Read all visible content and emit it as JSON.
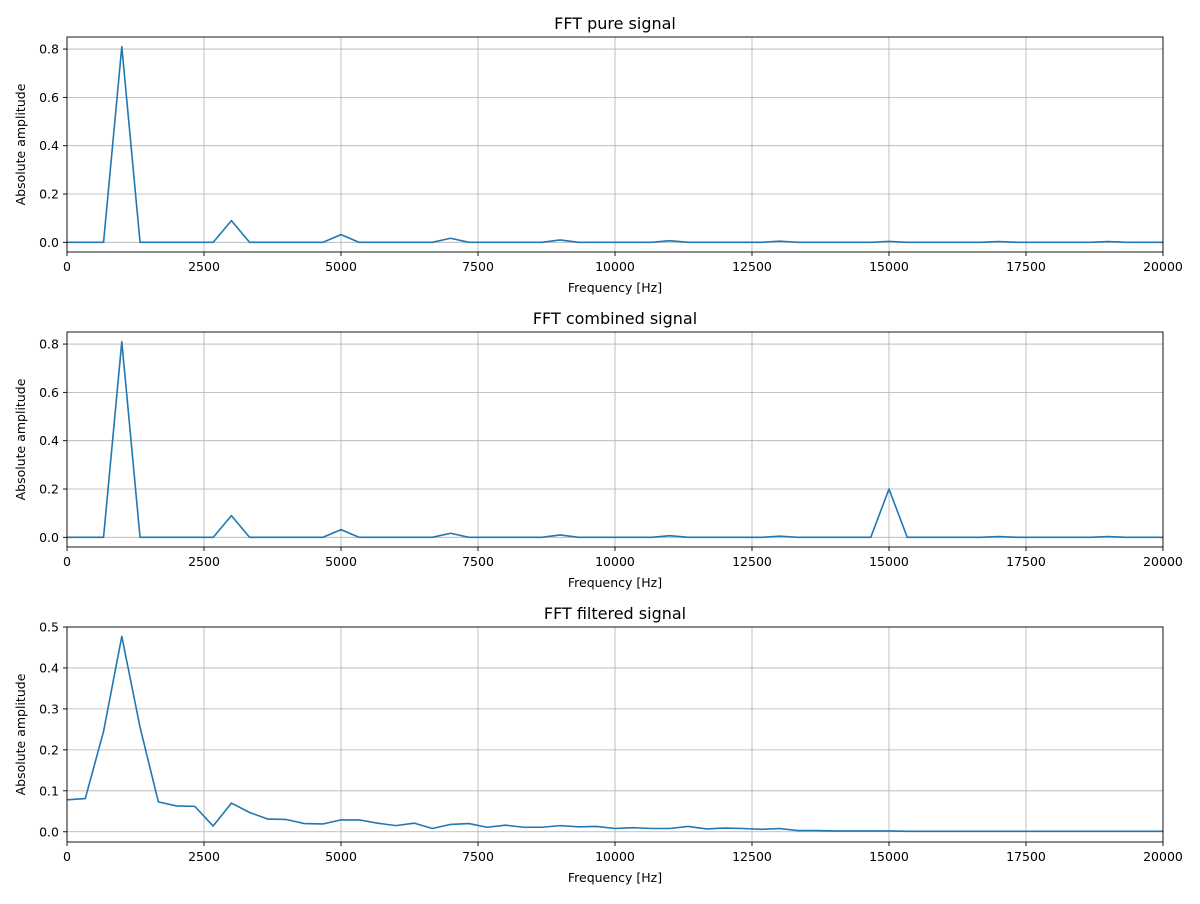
{
  "chart_data": [
    {
      "type": "line",
      "title": "FFT pure signal",
      "xlabel": "Frequency [Hz]",
      "ylabel": "Absolute amplitude",
      "xlim": [
        0,
        20000
      ],
      "ylim": [
        -0.04,
        0.85
      ],
      "grid": true,
      "color": "#1f77b4",
      "x_ticks": [
        "0",
        "2500",
        "5000",
        "7500",
        "10000",
        "12500",
        "15000",
        "17500",
        "20000"
      ],
      "y_ticks": [
        "0.0",
        "0.2",
        "0.4",
        "0.6",
        "0.8"
      ],
      "series": [
        {
          "x": [
            0,
            333,
            667,
            1000,
            1333,
            1667,
            2000,
            2333,
            2667,
            3000,
            3333,
            3667,
            4000,
            4333,
            4667,
            5000,
            5333,
            5667,
            6000,
            6333,
            6667,
            7000,
            7333,
            7667,
            8000,
            8333,
            8667,
            9000,
            9333,
            9667,
            10000,
            10333,
            10667,
            11000,
            11333,
            11667,
            12000,
            12333,
            12667,
            13000,
            13333,
            13667,
            14000,
            14333,
            14667,
            15000,
            15333,
            15667,
            16000,
            16333,
            16667,
            17000,
            17333,
            17667,
            18000,
            18333,
            18667,
            19000,
            19333,
            19667,
            20000
          ],
          "values": [
            0,
            0,
            0,
            0.81,
            0,
            0,
            0,
            0,
            0,
            0.09,
            0,
            0,
            0,
            0,
            0,
            0.032,
            0,
            0,
            0,
            0,
            0,
            0.017,
            0,
            0,
            0,
            0,
            0,
            0.01,
            0,
            0,
            0,
            0,
            0,
            0.007,
            0,
            0,
            0,
            0,
            0,
            0.005,
            0,
            0,
            0,
            0,
            0,
            0.004,
            0,
            0,
            0,
            0,
            0,
            0.003,
            0,
            0,
            0,
            0,
            0,
            0.003,
            0,
            0,
            0
          ]
        }
      ]
    },
    {
      "type": "line",
      "title": "FFT combined signal",
      "xlabel": "Frequency [Hz]",
      "ylabel": "Absolute amplitude",
      "xlim": [
        0,
        20000
      ],
      "ylim": [
        -0.04,
        0.85
      ],
      "grid": true,
      "color": "#1f77b4",
      "x_ticks": [
        "0",
        "2500",
        "5000",
        "7500",
        "10000",
        "12500",
        "15000",
        "17500",
        "20000"
      ],
      "y_ticks": [
        "0.0",
        "0.2",
        "0.4",
        "0.6",
        "0.8"
      ],
      "series": [
        {
          "x": [
            0,
            333,
            667,
            1000,
            1333,
            1667,
            2000,
            2333,
            2667,
            3000,
            3333,
            3667,
            4000,
            4333,
            4667,
            5000,
            5333,
            5667,
            6000,
            6333,
            6667,
            7000,
            7333,
            7667,
            8000,
            8333,
            8667,
            9000,
            9333,
            9667,
            10000,
            10333,
            10667,
            11000,
            11333,
            11667,
            12000,
            12333,
            12667,
            13000,
            13333,
            13667,
            14000,
            14333,
            14667,
            15000,
            15333,
            15667,
            16000,
            16333,
            16667,
            17000,
            17333,
            17667,
            18000,
            18333,
            18667,
            19000,
            19333,
            19667,
            20000
          ],
          "values": [
            0,
            0,
            0,
            0.81,
            0,
            0,
            0,
            0,
            0,
            0.09,
            0,
            0,
            0,
            0,
            0,
            0.032,
            0,
            0,
            0,
            0,
            0,
            0.017,
            0,
            0,
            0,
            0,
            0,
            0.01,
            0,
            0,
            0,
            0,
            0,
            0.007,
            0,
            0,
            0,
            0,
            0,
            0.005,
            0,
            0,
            0,
            0,
            0,
            0.2,
            0,
            0,
            0,
            0,
            0,
            0.003,
            0,
            0,
            0,
            0,
            0,
            0.003,
            0,
            0,
            0
          ]
        }
      ]
    },
    {
      "type": "line",
      "title": "FFT filtered signal",
      "xlabel": "Frequency [Hz]",
      "ylabel": "Absolute amplitude",
      "xlim": [
        0,
        20000
      ],
      "ylim": [
        -0.025,
        0.5
      ],
      "grid": true,
      "color": "#1f77b4",
      "x_ticks": [
        "0",
        "2500",
        "5000",
        "7500",
        "10000",
        "12500",
        "15000",
        "17500",
        "20000"
      ],
      "y_ticks": [
        "0.0",
        "0.1",
        "0.2",
        "0.3",
        "0.4",
        "0.5"
      ],
      "series": [
        {
          "x": [
            0,
            333,
            667,
            1000,
            1333,
            1667,
            2000,
            2333,
            2667,
            3000,
            3333,
            3667,
            4000,
            4333,
            4667,
            5000,
            5333,
            5667,
            6000,
            6333,
            6667,
            7000,
            7333,
            7667,
            8000,
            8333,
            8667,
            9000,
            9333,
            9667,
            10000,
            10333,
            10667,
            11000,
            11333,
            11667,
            12000,
            12333,
            12667,
            13000,
            13333,
            13667,
            14000,
            14333,
            14667,
            15000,
            15333,
            15667,
            16000,
            16333,
            16667,
            17000,
            17333,
            17667,
            18000,
            18333,
            18667,
            19000,
            19333,
            19667,
            20000
          ],
          "values": [
            0.078,
            0.081,
            0.245,
            0.477,
            0.255,
            0.073,
            0.063,
            0.062,
            0.014,
            0.07,
            0.047,
            0.031,
            0.03,
            0.02,
            0.019,
            0.029,
            0.029,
            0.021,
            0.015,
            0.021,
            0.008,
            0.018,
            0.02,
            0.011,
            0.016,
            0.011,
            0.011,
            0.015,
            0.012,
            0.013,
            0.008,
            0.01,
            0.008,
            0.008,
            0.013,
            0.007,
            0.009,
            0.008,
            0.006,
            0.008,
            0.003,
            0.003,
            0.002,
            0.002,
            0.002,
            0.002,
            0.001,
            0.001,
            0.001,
            0.001,
            0.001,
            0.001,
            0.001,
            0.001,
            0.001,
            0.001,
            0.001,
            0.001,
            0.001,
            0.001,
            0.001
          ]
        }
      ]
    }
  ]
}
